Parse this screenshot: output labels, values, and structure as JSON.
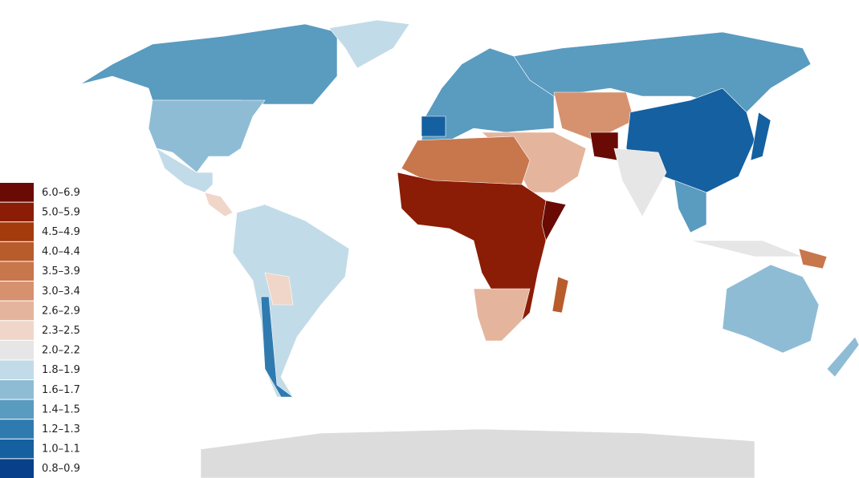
{
  "legend": {
    "items": [
      {
        "label": "6.0–6.9",
        "color": "#6a0a04"
      },
      {
        "label": "5.0–5.9",
        "color": "#8b1c06"
      },
      {
        "label": "4.5–4.9",
        "color": "#a33b0c"
      },
      {
        "label": "4.0–4.4",
        "color": "#b85c2c"
      },
      {
        "label": "3.5–3.9",
        "color": "#c8764c"
      },
      {
        "label": "3.0–3.4",
        "color": "#d6926e"
      },
      {
        "label": "2.6–2.9",
        "color": "#e4b59c"
      },
      {
        "label": "2.3–2.5",
        "color": "#f0d6c9"
      },
      {
        "label": "2.0–2.2",
        "color": "#e6e6e6"
      },
      {
        "label": "1.8–1.9",
        "color": "#c2dbe8"
      },
      {
        "label": "1.6–1.7",
        "color": "#8fbcd5"
      },
      {
        "label": "1.4–1.5",
        "color": "#5a9bc0"
      },
      {
        "label": "1.2–1.3",
        "color": "#2f7bb0"
      },
      {
        "label": "1.0–1.1",
        "color": "#1560a0"
      },
      {
        "label": "0.8–0.9",
        "color": "#08408a"
      }
    ]
  }
}
